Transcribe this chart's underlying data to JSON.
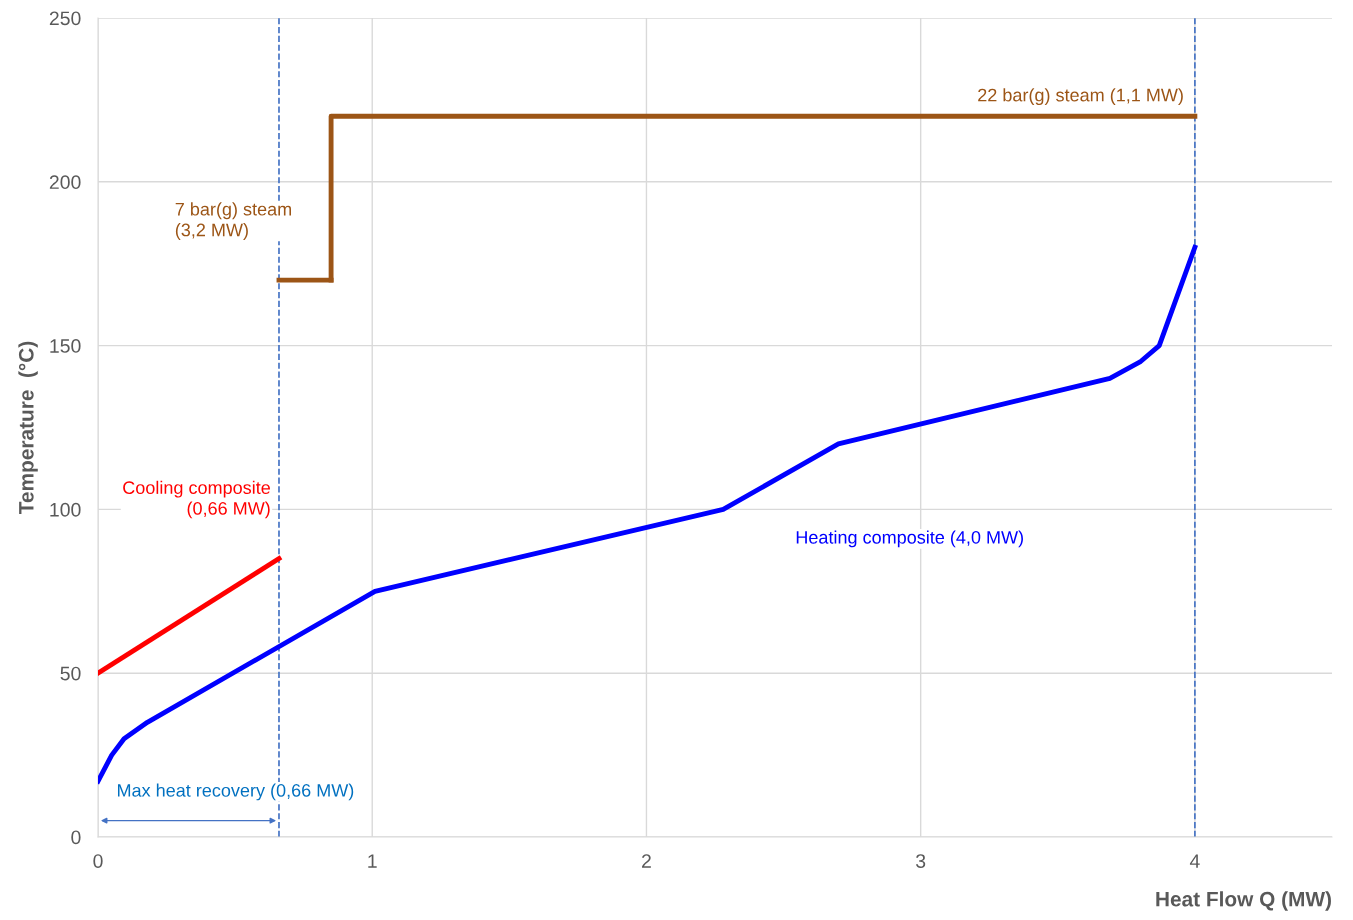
{
  "chart_data": {
    "type": "line",
    "xlabel": "Heat Flow Q (MW)",
    "ylabel": "Temperature  (°C)",
    "xlim": [
      0,
      4.5
    ],
    "xticks": [
      0,
      1,
      2,
      3,
      4
    ],
    "ylim": [
      0,
      250
    ],
    "yticks": [
      0,
      50,
      100,
      150,
      200,
      250
    ],
    "grid": true,
    "legend": false,
    "marker": "none",
    "line_style": "solid",
    "series": [
      {
        "name": "Heating composite (4,0 MW)",
        "color": "#0000ff",
        "x": [
          0,
          0.05,
          0.095,
          0.18,
          1.01,
          2.28,
          2.7,
          3.69,
          3.8,
          3.87,
          4.0
        ],
        "values": [
          17,
          25,
          30,
          35,
          75,
          100,
          120,
          140,
          145,
          150,
          180
        ]
      },
      {
        "name": "Cooling composite\n(0,66 MW)",
        "color": "#ff0000",
        "x": [
          0,
          0.66
        ],
        "values": [
          50,
          85
        ]
      },
      {
        "name": "7 bar(g) steam\n(3,2 MW)",
        "color": "#9c5516",
        "x": [
          0.66,
          0.85
        ],
        "values": [
          170,
          170
        ]
      },
      {
        "name": "22 bar(g) steam (1,1 MW)",
        "color": "#9c5516",
        "x": [
          0.85,
          0.85,
          4.0
        ],
        "values": [
          170,
          220,
          220
        ]
      }
    ],
    "ref_lines": [
      {
        "axis": "x",
        "value": 0.66,
        "color": "#4472c4",
        "line_style": "dashed"
      },
      {
        "axis": "x",
        "value": 4.0,
        "color": "#4472c4",
        "line_style": "dashed"
      }
    ],
    "annotations": [
      "Max heat recovery (0,66 MW)"
    ]
  }
}
